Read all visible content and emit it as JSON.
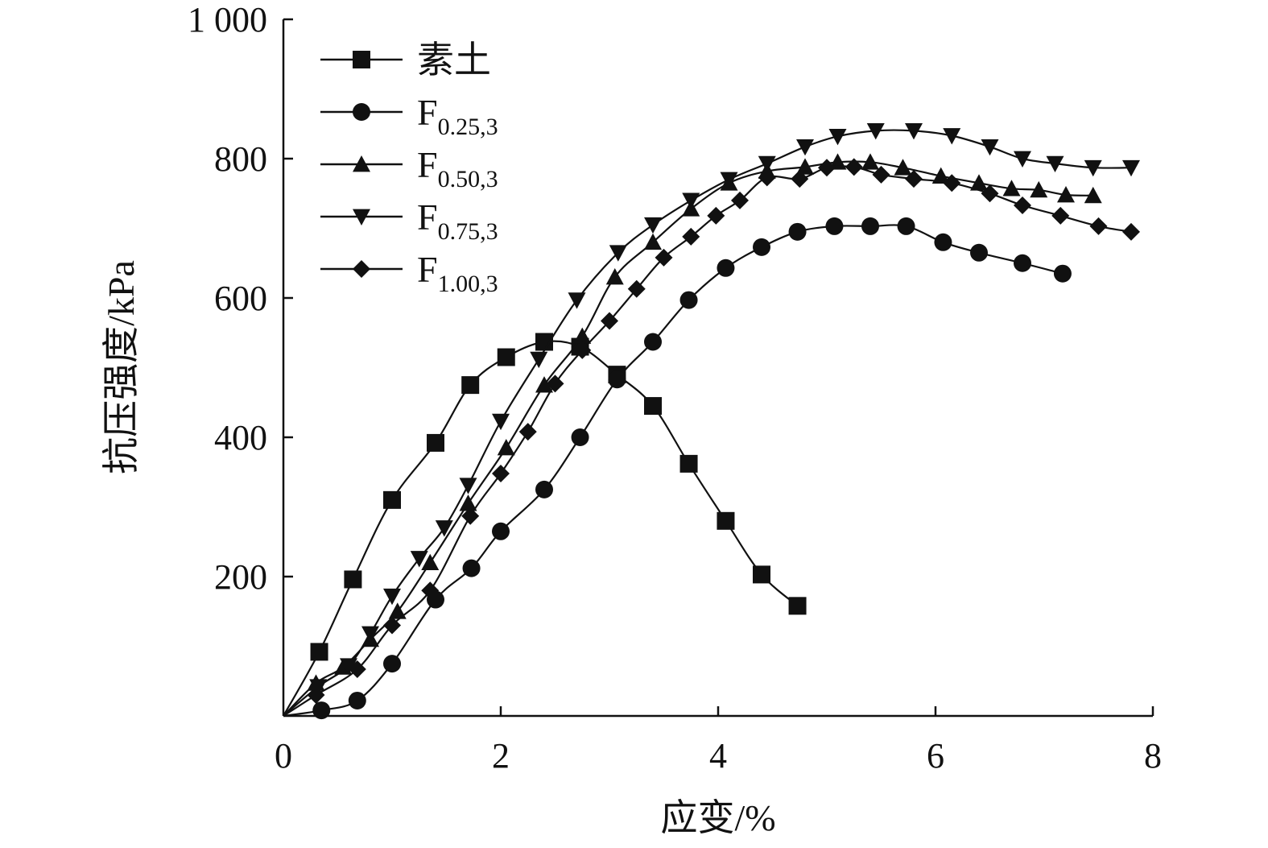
{
  "chart_data": {
    "type": "line",
    "title": "",
    "xlabel": "应变/%",
    "ylabel": "抗压强度/kPa",
    "xlim": [
      0,
      8
    ],
    "ylim": [
      0,
      1000
    ],
    "xticks": [
      0,
      2,
      4,
      6,
      8
    ],
    "xtick_labels": [
      "0",
      "2",
      "4",
      "6",
      "8"
    ],
    "yticks": [
      200,
      400,
      600,
      800,
      1000
    ],
    "ytick_labels": [
      "200",
      "400",
      "600",
      "800",
      "1 000"
    ],
    "grid": false,
    "legend_position": "top-left",
    "color": "#111111",
    "series": [
      {
        "name": "素土",
        "name_main": "素土",
        "name_sub": "",
        "marker": "square",
        "x": [
          0,
          0.33,
          0.64,
          1.0,
          1.4,
          1.72,
          2.05,
          2.4,
          2.73,
          3.07,
          3.4,
          3.73,
          4.07,
          4.4,
          4.73
        ],
        "y": [
          0,
          92,
          196,
          310,
          392,
          475,
          515,
          537,
          530,
          490,
          445,
          362,
          280,
          203,
          158
        ]
      },
      {
        "name": "F0.25,3",
        "name_main": "F",
        "name_sub": "0.25,3",
        "marker": "circle",
        "x": [
          0,
          0.35,
          0.68,
          1.0,
          1.4,
          1.73,
          2.0,
          2.4,
          2.73,
          3.07,
          3.4,
          3.73,
          4.07,
          4.4,
          4.73,
          5.07,
          5.4,
          5.73,
          6.07,
          6.4,
          6.8,
          7.17
        ],
        "y": [
          0,
          8,
          22,
          75,
          167,
          212,
          265,
          325,
          400,
          483,
          537,
          597,
          643,
          673,
          695,
          703,
          703,
          703,
          680,
          665,
          650,
          635
        ]
      },
      {
        "name": "F0.50,3",
        "name_main": "F",
        "name_sub": "0.50,3",
        "marker": "triangle-up",
        "x": [
          0,
          0.3,
          0.55,
          0.8,
          1.05,
          1.35,
          1.7,
          2.05,
          2.4,
          2.75,
          3.05,
          3.4,
          3.75,
          4.1,
          4.45,
          4.8,
          5.1,
          5.4,
          5.7,
          6.05,
          6.4,
          6.7,
          6.95,
          7.2,
          7.45
        ],
        "y": [
          0,
          47,
          70,
          110,
          150,
          220,
          305,
          385,
          475,
          545,
          630,
          680,
          728,
          765,
          782,
          788,
          795,
          795,
          787,
          775,
          765,
          757,
          755,
          748,
          747
        ]
      },
      {
        "name": "F0.75,3",
        "name_main": "F",
        "name_sub": "0.75,3",
        "marker": "triangle-down",
        "x": [
          0,
          0.32,
          0.6,
          0.8,
          1.0,
          1.25,
          1.48,
          1.7,
          2.0,
          2.35,
          2.7,
          3.08,
          3.4,
          3.75,
          4.1,
          4.45,
          4.8,
          5.1,
          5.45,
          5.8,
          6.15,
          6.5,
          6.8,
          7.1,
          7.45,
          7.8
        ],
        "y": [
          0,
          42,
          72,
          118,
          172,
          226,
          270,
          331,
          423,
          512,
          597,
          665,
          705,
          740,
          770,
          793,
          817,
          832,
          840,
          840,
          833,
          817,
          800,
          793,
          787,
          787
        ]
      },
      {
        "name": "F1.00,3",
        "name_main": "F",
        "name_sub": "1.00,3",
        "marker": "diamond",
        "x": [
          0,
          0.3,
          0.68,
          1.0,
          1.35,
          1.72,
          2.0,
          2.25,
          2.5,
          2.75,
          3.0,
          3.25,
          3.5,
          3.75,
          3.98,
          4.2,
          4.45,
          4.75,
          5.0,
          5.25,
          5.5,
          5.8,
          6.15,
          6.5,
          6.8,
          7.15,
          7.5,
          7.8
        ],
        "y": [
          0,
          30,
          67,
          130,
          180,
          287,
          348,
          408,
          477,
          525,
          567,
          613,
          658,
          688,
          718,
          740,
          773,
          771,
          787,
          788,
          777,
          771,
          765,
          750,
          733,
          718,
          703,
          695
        ]
      }
    ]
  }
}
